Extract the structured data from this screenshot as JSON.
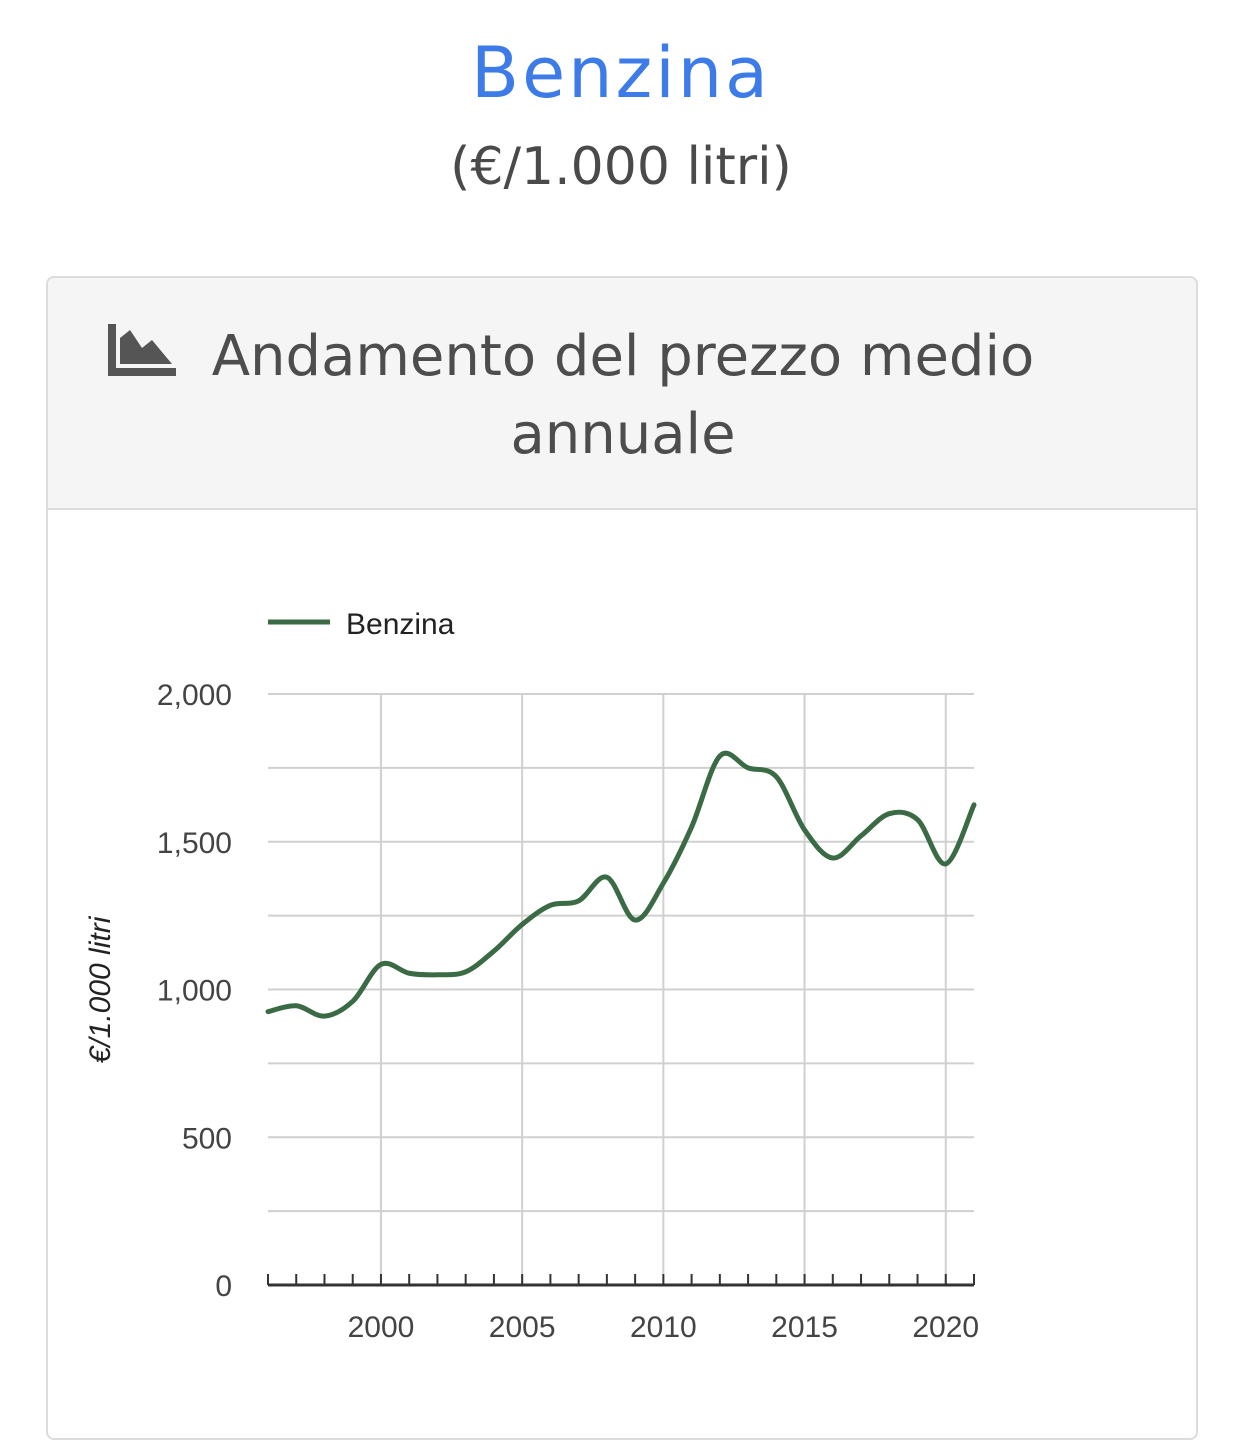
{
  "header": {
    "title": "Benzina",
    "subtitle": "(€/1.000 litri)"
  },
  "card": {
    "icon": "area-chart-icon",
    "title": "Andamento del prezzo medio annuale"
  },
  "colors": {
    "title": "#3c7be8",
    "series": "#3a6b45",
    "grid": "#d0d0d0"
  },
  "chart_data": {
    "type": "line",
    "title": "",
    "xlabel": "",
    "ylabel": "€/1.000 litri",
    "legend": "top-left",
    "grid": true,
    "xlim": [
      1996,
      2021
    ],
    "ylim": [
      0,
      2000
    ],
    "x_ticks": [
      "2000",
      "2005",
      "2010",
      "2015",
      "2020"
    ],
    "y_ticks": [
      "0",
      "500",
      "1,000",
      "1,500",
      "2,000"
    ],
    "series": [
      {
        "name": "Benzina",
        "x": [
          1996,
          1997,
          1998,
          1999,
          2000,
          2001,
          2002,
          2003,
          2004,
          2005,
          2006,
          2007,
          2008,
          2009,
          2010,
          2011,
          2012,
          2013,
          2014,
          2015,
          2016,
          2017,
          2018,
          2019,
          2020,
          2021
        ],
        "values": [
          925,
          945,
          910,
          960,
          1085,
          1055,
          1050,
          1060,
          1130,
          1220,
          1285,
          1300,
          1380,
          1235,
          1360,
          1550,
          1790,
          1750,
          1720,
          1540,
          1445,
          1520,
          1595,
          1575,
          1425,
          1625
        ]
      }
    ]
  }
}
